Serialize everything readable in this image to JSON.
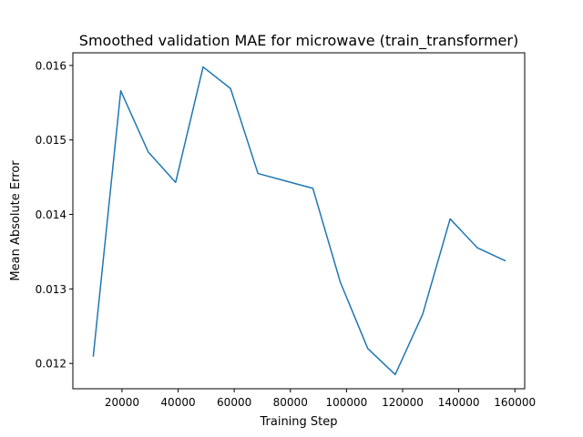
{
  "chart_data": {
    "type": "line",
    "title": "Smoothed validation MAE for microwave (train_transformer)",
    "xlabel": "Training Step",
    "ylabel": "Mean Absolute Error",
    "xlim": [
      2500,
      163500
    ],
    "ylim": [
      0.01166,
      0.01617
    ],
    "x_ticks": [
      20000,
      40000,
      60000,
      80000,
      100000,
      120000,
      140000,
      160000
    ],
    "x_tick_labels": [
      "20000",
      "40000",
      "60000",
      "80000",
      "100000",
      "120000",
      "140000",
      "160000"
    ],
    "y_ticks": [
      0.012,
      0.013,
      0.014,
      0.015,
      0.016
    ],
    "y_tick_labels": [
      "0.012",
      "0.013",
      "0.014",
      "0.015",
      "0.016"
    ],
    "grid": false,
    "legend": "none",
    "series": [
      {
        "color": "#1f77b4",
        "x": [
          9780,
          19560,
          29340,
          39120,
          48900,
          58680,
          68460,
          78240,
          88020,
          97800,
          107580,
          117360,
          127140,
          136920,
          146700,
          156480
        ],
        "y": [
          0.0121,
          0.01566,
          0.01484,
          0.01443,
          0.01598,
          0.01569,
          0.01455,
          0.01445,
          0.01435,
          0.01309,
          0.0122,
          0.01185,
          0.01266,
          0.01394,
          0.01355,
          0.01338
        ]
      }
    ]
  }
}
